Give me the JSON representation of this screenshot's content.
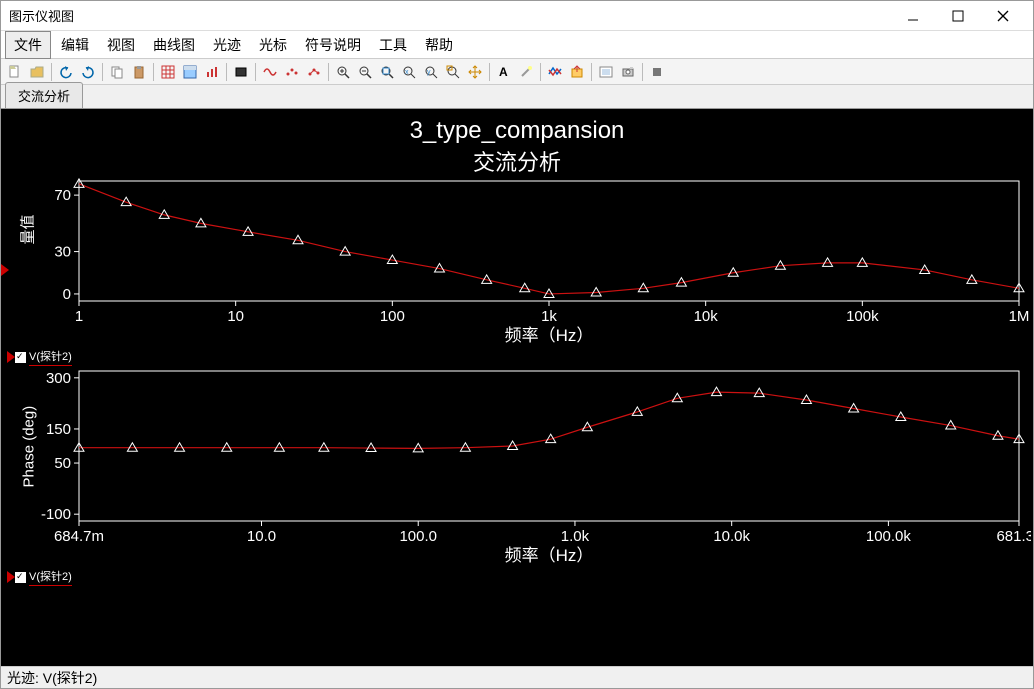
{
  "window": {
    "title": "图示仪视图"
  },
  "menu": [
    "文件",
    "编辑",
    "视图",
    "曲线图",
    "光迹",
    "光标",
    "符号说明",
    "工具",
    "帮助"
  ],
  "tab": {
    "label": "交流分析"
  },
  "chart": {
    "title": "3_type_compansion",
    "subtitle": "交流分析",
    "bg": "#000000",
    "grid_color": "#ffffff",
    "text_color": "#ffffff",
    "line_color": "#cc1111",
    "marker": "triangle",
    "marker_size": 5,
    "line_width": 1.2,
    "top": {
      "ylabel": "量值",
      "xlabel": "频率（Hz）",
      "x_ticks": [
        1,
        10,
        100,
        1000,
        10000,
        100000,
        1000000
      ],
      "x_tick_labels": [
        "1",
        "10",
        "100",
        "1k",
        "10k",
        "100k",
        "1M"
      ],
      "y_ticks": [
        0,
        30,
        70
      ],
      "y_tick_labels": [
        "0",
        "30",
        "70"
      ],
      "ylim": [
        -5,
        80
      ],
      "xlog": true,
      "data": [
        [
          1,
          78
        ],
        [
          2,
          65
        ],
        [
          3.5,
          56
        ],
        [
          6,
          50
        ],
        [
          12,
          44
        ],
        [
          25,
          38
        ],
        [
          50,
          30
        ],
        [
          100,
          24
        ],
        [
          200,
          18
        ],
        [
          400,
          10
        ],
        [
          700,
          4
        ],
        [
          1000,
          0
        ],
        [
          2000,
          1
        ],
        [
          4000,
          4
        ],
        [
          7000,
          8
        ],
        [
          15000,
          15
        ],
        [
          30000,
          20
        ],
        [
          60000,
          22
        ],
        [
          100000,
          22
        ],
        [
          250000,
          17
        ],
        [
          500000,
          10
        ],
        [
          1000000,
          4
        ]
      ]
    },
    "bottom": {
      "ylabel": "Phase (deg)",
      "xlabel": "频率（Hz）",
      "x_ticks": [
        0.6847,
        10,
        100,
        1000,
        10000,
        100000,
        681300
      ],
      "x_tick_labels": [
        "684.7m",
        "10.0",
        "100.0",
        "1.0k",
        "10.0k",
        "100.0k",
        "681.3k"
      ],
      "y_ticks": [
        -100,
        50,
        150,
        300
      ],
      "y_tick_labels": [
        "-100",
        "50",
        "150",
        "300"
      ],
      "ylim": [
        -120,
        320
      ],
      "xlog": true,
      "data": [
        [
          0.6847,
          95
        ],
        [
          1.5,
          95
        ],
        [
          3,
          95
        ],
        [
          6,
          95
        ],
        [
          13,
          95
        ],
        [
          25,
          95
        ],
        [
          50,
          94
        ],
        [
          100,
          93
        ],
        [
          200,
          95
        ],
        [
          400,
          100
        ],
        [
          700,
          120
        ],
        [
          1200,
          155
        ],
        [
          2500,
          200
        ],
        [
          4500,
          240
        ],
        [
          8000,
          258
        ],
        [
          15000,
          255
        ],
        [
          30000,
          235
        ],
        [
          60000,
          210
        ],
        [
          120000,
          185
        ],
        [
          250000,
          160
        ],
        [
          500000,
          130
        ],
        [
          681300,
          120
        ]
      ]
    },
    "legend": {
      "label": "V(探针2)",
      "checked": true
    }
  },
  "status": {
    "text": "光迹: V(探针2)"
  },
  "toolbar_icons": [
    "new",
    "open",
    "sep",
    "undo",
    "redo",
    "sep",
    "copy",
    "paste",
    "sep",
    "grid",
    "panel",
    "bars",
    "sep",
    "rect",
    "sep",
    "wave",
    "dots1",
    "dots2",
    "sep",
    "zoomin",
    "zoomout",
    "zoomfit",
    "zoomx",
    "zoomy",
    "zoombox",
    "pan",
    "sep",
    "text",
    "wand",
    "sep",
    "trace",
    "export",
    "sep",
    "snap",
    "cam",
    "sep",
    "stop"
  ]
}
